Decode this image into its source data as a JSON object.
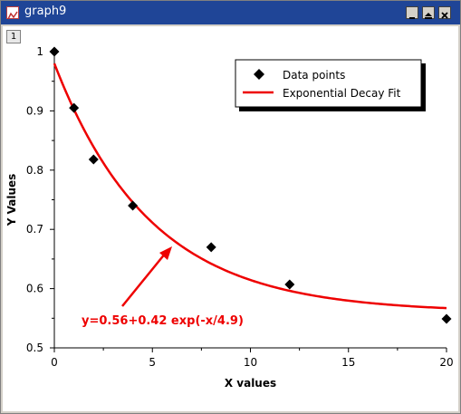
{
  "window": {
    "title": "graph9",
    "layer_label": "1"
  },
  "chart_data": {
    "type": "scatter",
    "xlabel": "X values",
    "ylabel": "Y Values",
    "xlim": [
      0,
      20
    ],
    "ylim": [
      0.5,
      1.0
    ],
    "xticks": [
      0,
      5,
      10,
      15,
      20
    ],
    "yticks": [
      0.5,
      0.6,
      0.7,
      0.8,
      0.9,
      1.0
    ],
    "ytick_labels": [
      "0.5",
      "0.6",
      "0.7",
      "0.8",
      "0.9",
      "1"
    ],
    "series": [
      {
        "name": "Data points",
        "kind": "points",
        "marker": "diamond",
        "color": "#000000",
        "x": [
          0,
          1,
          2,
          4,
          8,
          12,
          20
        ],
        "y": [
          1.0,
          0.905,
          0.818,
          0.74,
          0.67,
          0.607,
          0.549
        ]
      },
      {
        "name": "Exponential Decay Fit",
        "kind": "line",
        "color": "#ee0000",
        "model": {
          "y0": 0.56,
          "A": 0.42,
          "t": 4.9
        }
      }
    ],
    "annotation": {
      "text": "y=0.56+0.42 exp(-x/4.9)",
      "color": "#ee0000"
    },
    "legend_position": "top-right",
    "grid": false
  }
}
